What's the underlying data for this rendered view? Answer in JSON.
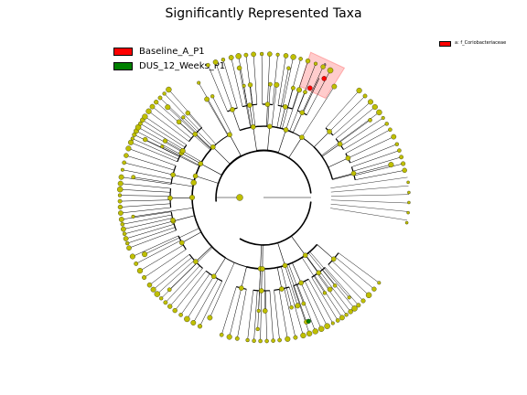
{
  "chart_data": {
    "type": "cladogram",
    "title": "Significantly Represented Taxa",
    "groups": [
      {
        "name": "Baseline_A_P1",
        "color": "#ff0000"
      },
      {
        "name": "DUS_12_Weeks_P1",
        "color": "#008000"
      }
    ],
    "default_node_color": "#bfbf00",
    "highlighted_clades": [
      {
        "marker": "a",
        "taxon": "a: f_Coriobacteriaceae",
        "group": "Baseline_A_P1",
        "color": "#ff0000"
      }
    ],
    "grid": false
  }
}
